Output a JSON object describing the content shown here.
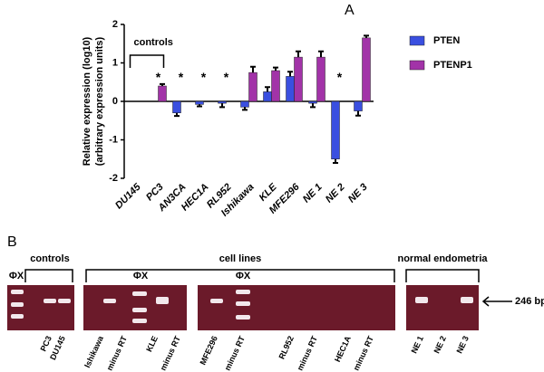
{
  "chart_data": {
    "type": "bar",
    "panel_label": "A",
    "ylabel": [
      "Relative expression (log10)",
      "(arbitrary expression units)"
    ],
    "categories": [
      "DU145",
      "PC3",
      "AN3CA",
      "HEC1A",
      "RL952",
      "Ishikawa",
      "KLE",
      "MFE296",
      "NE 1",
      "NE 2",
      "NE 3"
    ],
    "series": [
      {
        "name": "PTEN",
        "color": "#3a4fe0",
        "values": [
          0,
          null,
          -0.3,
          -0.08,
          -0.05,
          -0.15,
          0.25,
          0.65,
          -0.05,
          -1.5,
          -0.25
        ],
        "errors": [
          0,
          null,
          0.08,
          0.05,
          0.1,
          0.07,
          0.12,
          0.12,
          0.1,
          0.1,
          0.12
        ]
      },
      {
        "name": "PTENP1",
        "color": "#a233a8",
        "values": [
          0,
          0.4,
          null,
          null,
          null,
          0.75,
          0.8,
          1.15,
          1.15,
          null,
          1.65
        ],
        "errors": [
          0,
          0.05,
          null,
          null,
          null,
          0.15,
          0.08,
          0.15,
          0.15,
          null,
          0.06
        ]
      }
    ],
    "markers": [
      null,
      "*",
      "*",
      "*",
      "*",
      null,
      null,
      null,
      null,
      "*",
      null
    ],
    "bracket_label": "controls",
    "ylim": [
      -2,
      2
    ],
    "yticks": [
      -2,
      -1,
      0,
      1,
      2
    ],
    "legend": "right"
  },
  "gel": {
    "panel_label": "B",
    "groups": [
      "controls",
      "cell lines",
      "normal endometria"
    ],
    "marker_labels": [
      "ΦX",
      "ΦX",
      "ΦX"
    ],
    "size_label": "246 bp",
    "lanes": [
      "PC3",
      "DU145",
      "Ishikawa",
      "minus RT",
      "KLE",
      "minus RT",
      "MFE296",
      "minus RT",
      "RL952",
      "minus RT",
      "HEC1A",
      "minus RT",
      "NE 1",
      "NE 2",
      "NE 3"
    ]
  }
}
